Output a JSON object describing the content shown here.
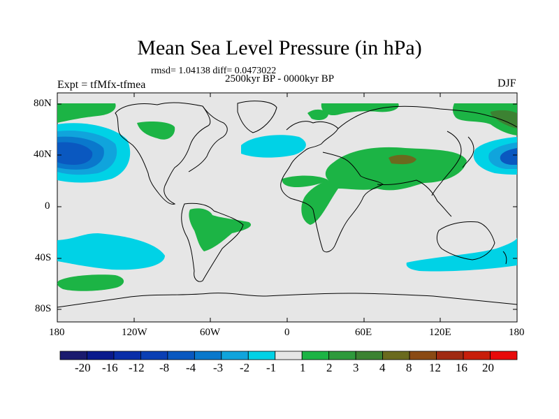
{
  "title": "Mean Sea Level Pressure (in hPa)",
  "stats_line": "rmsd= 1.04138 diff= 0.0473022",
  "subtitle": "2500kyr BP - 0000kyr BP",
  "experiment": "Expt = tfMfx-tfmea",
  "season": "DJF",
  "y_axis": {
    "labels": [
      "80N",
      "40N",
      "0",
      "40S",
      "80S"
    ]
  },
  "x_axis": {
    "labels": [
      "180",
      "120W",
      "60W",
      "0",
      "60E",
      "120E",
      "180"
    ]
  },
  "colorbar": {
    "labels": [
      "-20",
      "-16",
      "-12",
      "-8",
      "-4",
      "-3",
      "-2",
      "-1",
      "1",
      "2",
      "3",
      "4",
      "8",
      "12",
      "16",
      "20"
    ],
    "colors": [
      "#1a1a6e",
      "#0a1a8c",
      "#0a2ea8",
      "#0a3fb4",
      "#0a58c0",
      "#0a78cc",
      "#10a4dc",
      "#00d2e6",
      "#e6e6e6",
      "#1cb445",
      "#2e9a3c",
      "#3c8232",
      "#6a6a1e",
      "#8a4a14",
      "#a02a12",
      "#c81e0a",
      "#e80a0a"
    ]
  },
  "colors": {
    "ocean_bg": "#e6e6e6",
    "coast": "#000000"
  }
}
